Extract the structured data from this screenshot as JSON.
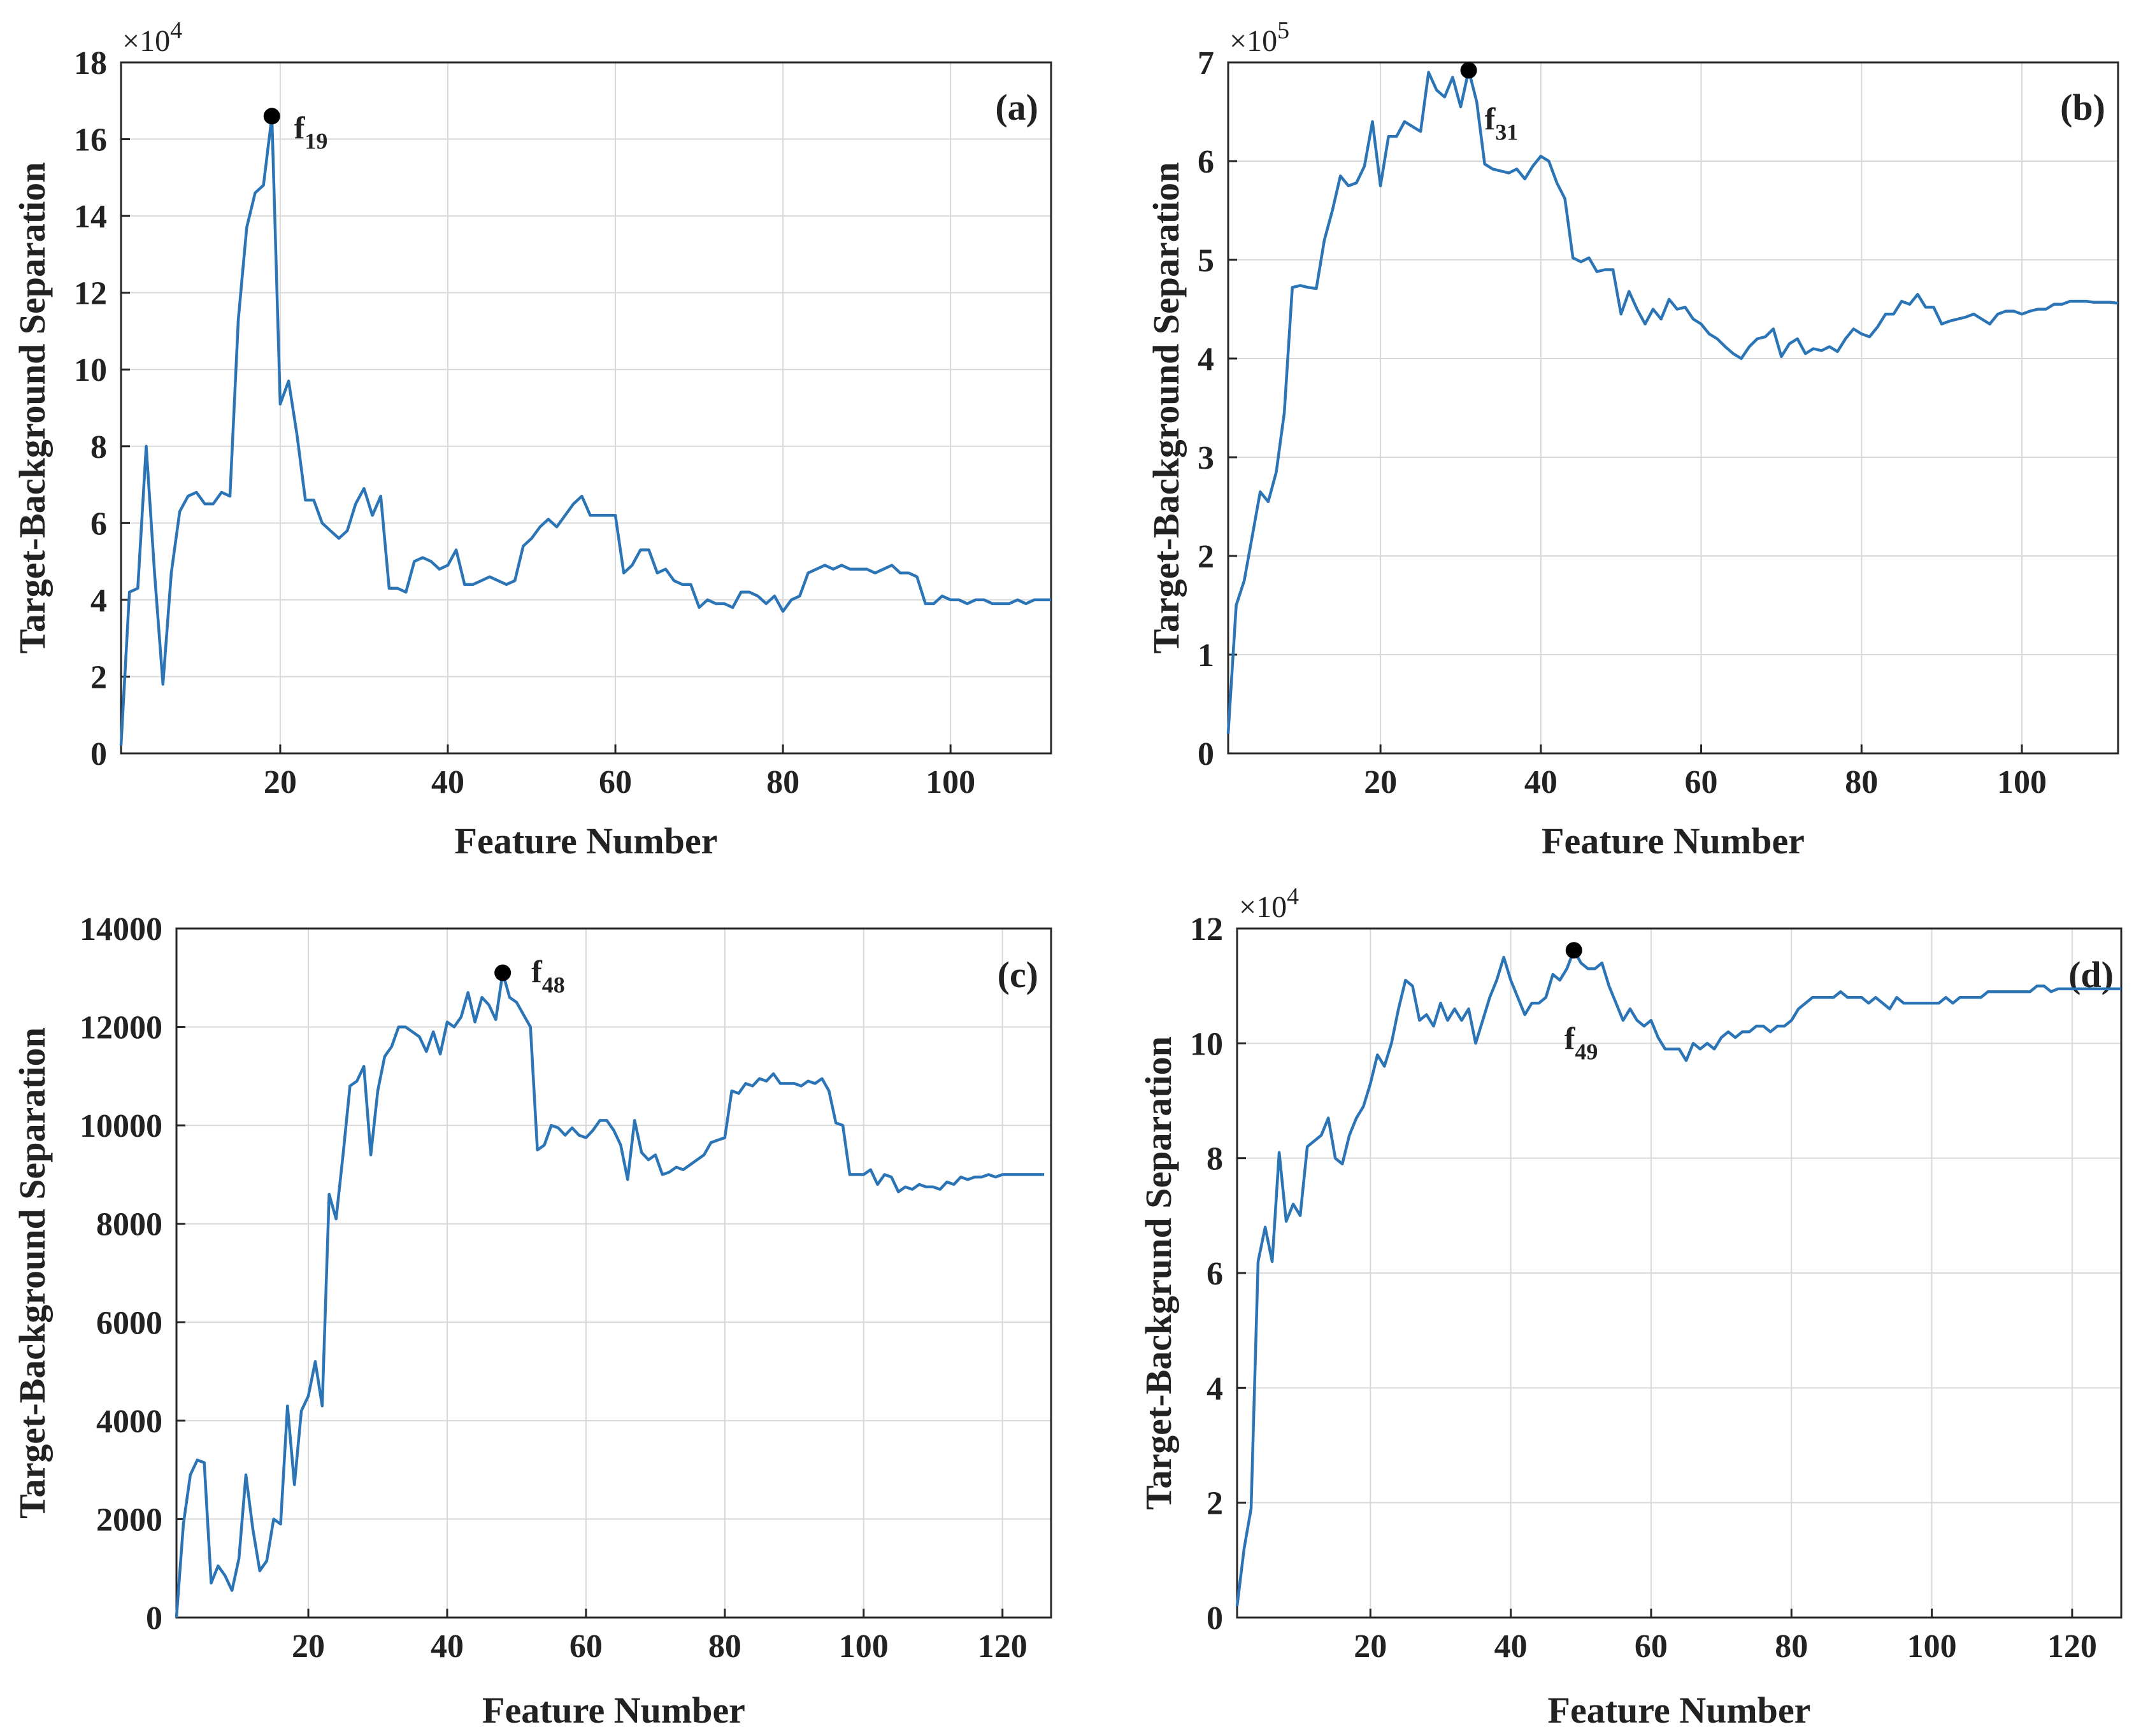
{
  "chart_data": [
    {
      "id": "a",
      "type": "line",
      "panel_label": "(a)",
      "xlabel": "Feature Number",
      "ylabel": "Target-Background Separation",
      "exponent_label": "×10",
      "exponent_power": "4",
      "xlim": [
        1,
        112
      ],
      "ylim": [
        0,
        18
      ],
      "xticks": [
        20,
        40,
        60,
        80,
        100
      ],
      "yticks": [
        0,
        2,
        4,
        6,
        8,
        10,
        12,
        14,
        16,
        18
      ],
      "annotation": {
        "label": "f",
        "subscript": "19",
        "x": 19,
        "y": 16.6
      },
      "series": [
        {
          "name": "separation",
          "values": [
            0.2,
            4.2,
            4.3,
            8.0,
            4.7,
            1.8,
            4.7,
            6.3,
            6.7,
            6.8,
            6.5,
            6.5,
            6.8,
            6.7,
            11.3,
            13.7,
            14.6,
            14.8,
            16.6,
            9.1,
            9.7,
            8.3,
            6.6,
            6.6,
            6.0,
            5.8,
            5.6,
            5.8,
            6.5,
            6.9,
            6.2,
            6.7,
            4.3,
            4.3,
            4.2,
            5.0,
            5.1,
            5.0,
            4.8,
            4.9,
            5.3,
            4.4,
            4.4,
            4.5,
            4.6,
            4.5,
            4.4,
            4.5,
            5.4,
            5.6,
            5.9,
            6.1,
            5.9,
            6.2,
            6.5,
            6.7,
            6.2,
            6.2,
            6.2,
            6.2,
            4.7,
            4.9,
            5.3,
            5.3,
            4.7,
            4.8,
            4.5,
            4.4,
            4.4,
            3.8,
            4.0,
            3.9,
            3.9,
            3.8,
            4.2,
            4.2,
            4.1,
            3.9,
            4.1,
            3.7,
            4.0,
            4.1,
            4.7,
            4.8,
            4.9,
            4.8,
            4.9,
            4.8,
            4.8,
            4.8,
            4.7,
            4.8,
            4.9,
            4.7,
            4.7,
            4.6,
            3.9,
            3.9,
            4.1,
            4.0,
            4.0,
            3.9,
            4.0,
            4.0,
            3.9,
            3.9,
            3.9,
            4.0,
            3.9,
            4.0,
            4.0,
            4.0
          ]
        }
      ]
    },
    {
      "id": "b",
      "type": "line",
      "panel_label": "(b)",
      "xlabel": "Feature Number",
      "ylabel": "Target-Background Separation",
      "exponent_label": "×10",
      "exponent_power": "5",
      "xlim": [
        1,
        112
      ],
      "ylim": [
        0,
        7
      ],
      "xticks": [
        20,
        40,
        60,
        80,
        100
      ],
      "yticks": [
        0,
        1,
        2,
        3,
        4,
        5,
        6,
        7
      ],
      "annotation": {
        "label": "f",
        "subscript": "31",
        "x": 31,
        "y": 6.92
      },
      "series": [
        {
          "name": "separation",
          "values": [
            0.2,
            1.5,
            1.75,
            2.2,
            2.65,
            2.55,
            2.85,
            3.45,
            4.72,
            4.74,
            4.72,
            4.71,
            5.2,
            5.5,
            5.85,
            5.75,
            5.78,
            5.95,
            6.4,
            5.75,
            6.25,
            6.25,
            6.4,
            6.35,
            6.3,
            6.9,
            6.72,
            6.65,
            6.85,
            6.55,
            6.92,
            6.6,
            5.97,
            5.92,
            5.9,
            5.88,
            5.92,
            5.82,
            5.95,
            6.05,
            6.0,
            5.78,
            5.62,
            5.02,
            4.98,
            5.02,
            4.88,
            4.9,
            4.9,
            4.45,
            4.68,
            4.5,
            4.35,
            4.5,
            4.4,
            4.6,
            4.5,
            4.52,
            4.4,
            4.35,
            4.25,
            4.2,
            4.12,
            4.05,
            4.0,
            4.12,
            4.2,
            4.22,
            4.3,
            4.02,
            4.15,
            4.2,
            4.05,
            4.1,
            4.08,
            4.12,
            4.07,
            4.2,
            4.3,
            4.25,
            4.22,
            4.32,
            4.45,
            4.45,
            4.58,
            4.55,
            4.65,
            4.52,
            4.52,
            4.35,
            4.38,
            4.4,
            4.42,
            4.45,
            4.4,
            4.35,
            4.45,
            4.48,
            4.48,
            4.45,
            4.48,
            4.5,
            4.5,
            4.55,
            4.55,
            4.58,
            4.58,
            4.58,
            4.57,
            4.57,
            4.57,
            4.56
          ]
        }
      ]
    },
    {
      "id": "c",
      "type": "line",
      "panel_label": "(c)",
      "xlabel": "Feature Number",
      "ylabel": "Target-Background Separation",
      "xlim": [
        1,
        127
      ],
      "ylim": [
        0,
        14000
      ],
      "xticks": [
        20,
        40,
        60,
        80,
        100,
        120
      ],
      "yticks": [
        0,
        2000,
        4000,
        6000,
        8000,
        10000,
        12000,
        14000
      ],
      "annotation": {
        "label": "f",
        "subscript": "48",
        "x": 48,
        "y": 13100
      },
      "series": [
        {
          "name": "separation",
          "values": [
            0,
            1900,
            2900,
            3200,
            3150,
            700,
            1050,
            850,
            550,
            1200,
            2900,
            1800,
            950,
            1150,
            2000,
            1900,
            4300,
            2700,
            4200,
            4500,
            5200,
            4300,
            8600,
            8100,
            9400,
            10800,
            10900,
            11200,
            9400,
            10700,
            11400,
            11600,
            12000,
            12000,
            11900,
            11800,
            11500,
            11900,
            11450,
            12100,
            12000,
            12200,
            12700,
            12100,
            12600,
            12450,
            12150,
            13100,
            12600,
            12500,
            12250,
            12000,
            9500,
            9600,
            10000,
            9950,
            9800,
            9950,
            9800,
            9750,
            9900,
            10100,
            10100,
            9900,
            9600,
            8900,
            10100,
            9450,
            9300,
            9400,
            9000,
            9050,
            9150,
            9100,
            9200,
            9300,
            9400,
            9650,
            9700,
            9750,
            10700,
            10650,
            10850,
            10800,
            10950,
            10900,
            11050,
            10850,
            10850,
            10850,
            10800,
            10900,
            10850,
            10950,
            10700,
            10050,
            10000,
            9000,
            9000,
            9000,
            9100,
            8800,
            9000,
            8950,
            8650,
            8750,
            8700,
            8800,
            8750,
            8750,
            8700,
            8850,
            8800,
            8950,
            8900,
            8950,
            8950,
            9000,
            8950,
            9000,
            9000,
            9000,
            9000,
            9000,
            9000,
            9000
          ]
        }
      ]
    },
    {
      "id": "d",
      "type": "line",
      "panel_label": "(d)",
      "xlabel": "Feature Number",
      "ylabel": "Target-Backgrund Separation",
      "exponent_label": "×10",
      "exponent_power": "4",
      "xlim": [
        1,
        127
      ],
      "ylim": [
        0,
        12
      ],
      "xticks": [
        20,
        40,
        60,
        80,
        100,
        120
      ],
      "yticks": [
        0,
        2,
        4,
        6,
        8,
        10,
        12
      ],
      "annotation": {
        "label": "f",
        "subscript": "49",
        "x": 49,
        "y": 11.62
      },
      "series": [
        {
          "name": "separation",
          "values": [
            0.2,
            1.2,
            1.9,
            6.2,
            6.8,
            6.2,
            8.1,
            6.9,
            7.2,
            7.0,
            8.2,
            8.3,
            8.4,
            8.7,
            8.0,
            7.9,
            8.4,
            8.7,
            8.9,
            9.3,
            9.8,
            9.6,
            10.0,
            10.6,
            11.1,
            11.0,
            10.4,
            10.5,
            10.3,
            10.7,
            10.4,
            10.6,
            10.4,
            10.6,
            10.0,
            10.4,
            10.8,
            11.1,
            11.5,
            11.1,
            10.8,
            10.5,
            10.7,
            10.7,
            10.8,
            11.2,
            11.1,
            11.3,
            11.62,
            11.4,
            11.3,
            11.3,
            11.4,
            11.0,
            10.7,
            10.4,
            10.6,
            10.4,
            10.3,
            10.4,
            10.1,
            9.9,
            9.9,
            9.9,
            9.7,
            10.0,
            9.9,
            10.0,
            9.9,
            10.1,
            10.2,
            10.1,
            10.2,
            10.2,
            10.3,
            10.3,
            10.2,
            10.3,
            10.3,
            10.4,
            10.6,
            10.7,
            10.8,
            10.8,
            10.8,
            10.8,
            10.9,
            10.8,
            10.8,
            10.8,
            10.7,
            10.8,
            10.7,
            10.6,
            10.8,
            10.7,
            10.7,
            10.7,
            10.7,
            10.7,
            10.7,
            10.8,
            10.7,
            10.8,
            10.8,
            10.8,
            10.8,
            10.9,
            10.9,
            10.9,
            10.9,
            10.9,
            10.9,
            10.9,
            11.0,
            11.0,
            10.9,
            10.95,
            10.95,
            10.95,
            10.95,
            10.95,
            10.95,
            10.95,
            10.95,
            10.95,
            10.95
          ]
        }
      ]
    }
  ]
}
